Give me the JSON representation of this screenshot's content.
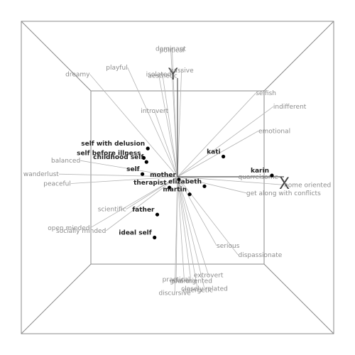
{
  "chart_data": {
    "type": "scatter",
    "description_words": [],
    "axes": {
      "x_label": "X",
      "y_label": "Y"
    },
    "xlim": [
      -1,
      1
    ],
    "ylim": [
      -1,
      1
    ],
    "grid": false,
    "constructs": [
      {
        "label": "dominant",
        "x": -0.05,
        "y": 0.95
      },
      {
        "label": "political",
        "x": -0.04,
        "y": 0.94
      },
      {
        "label": "playful",
        "x": -0.37,
        "y": 0.81
      },
      {
        "label": "dreamy",
        "x": -0.65,
        "y": 0.76
      },
      {
        "label": "isolated",
        "x": -0.14,
        "y": 0.76
      },
      {
        "label": "aesthetic",
        "x": -0.11,
        "y": 0.75
      },
      {
        "label": "passive",
        "x": 0.03,
        "y": 0.79
      },
      {
        "label": "introvert",
        "x": -0.17,
        "y": 0.49
      },
      {
        "label": "selfish",
        "x": 0.58,
        "y": 0.62
      },
      {
        "label": "indifferent",
        "x": 0.71,
        "y": 0.52
      },
      {
        "label": "emotional",
        "x": 0.6,
        "y": 0.34
      },
      {
        "label": "balanced",
        "x": -0.72,
        "y": 0.12
      },
      {
        "label": "wanderlust",
        "x": -0.88,
        "y": 0.02
      },
      {
        "label": "peaceful",
        "x": -0.79,
        "y": -0.05
      },
      {
        "label": "quarrelsome",
        "x": 0.45,
        "y": 0.0
      },
      {
        "label": "home oriented",
        "x": 0.79,
        "y": -0.06
      },
      {
        "label": "get along with conflicts",
        "x": 0.51,
        "y": -0.12
      },
      {
        "label": "scientific",
        "x": -0.38,
        "y": -0.24
      },
      {
        "label": "open minded",
        "x": -0.65,
        "y": -0.38
      },
      {
        "label": "socially minded",
        "x": -0.53,
        "y": -0.4
      },
      {
        "label": "serious",
        "x": 0.29,
        "y": -0.51
      },
      {
        "label": "dispassionate",
        "x": 0.45,
        "y": -0.58
      },
      {
        "label": "extrovert",
        "x": 0.23,
        "y": -0.73
      },
      {
        "label": "practical",
        "x": -0.01,
        "y": -0.76
      },
      {
        "label": "sharing",
        "x": 0.05,
        "y": -0.77
      },
      {
        "label": "goal oriented",
        "x": 0.1,
        "y": -0.77
      },
      {
        "label": "closely related",
        "x": 0.2,
        "y": -0.83
      },
      {
        "label": "discursive",
        "x": -0.02,
        "y": -0.86
      },
      {
        "label": "energetic",
        "x": 0.15,
        "y": -0.84
      }
    ],
    "elements": [
      {
        "label": "self with delusion",
        "x": -0.22,
        "y": 0.21
      },
      {
        "label": "self before illness",
        "x": -0.25,
        "y": 0.14
      },
      {
        "label": "childhood self",
        "x": -0.23,
        "y": 0.11
      },
      {
        "label": "self",
        "x": -0.26,
        "y": 0.02
      },
      {
        "label": "mother",
        "x": 0.01,
        "y": -0.02
      },
      {
        "label": "therapist",
        "x": -0.06,
        "y": -0.08
      },
      {
        "label": "kati",
        "x": 0.34,
        "y": 0.15
      },
      {
        "label": "karin",
        "x": 0.7,
        "y": 0.01
      },
      {
        "label": "elizabeth",
        "x": 0.2,
        "y": -0.07
      },
      {
        "label": "martin",
        "x": 0.09,
        "y": -0.13
      },
      {
        "label": "father",
        "x": -0.15,
        "y": -0.28
      },
      {
        "label": "ideal self",
        "x": -0.17,
        "y": -0.45
      }
    ]
  }
}
